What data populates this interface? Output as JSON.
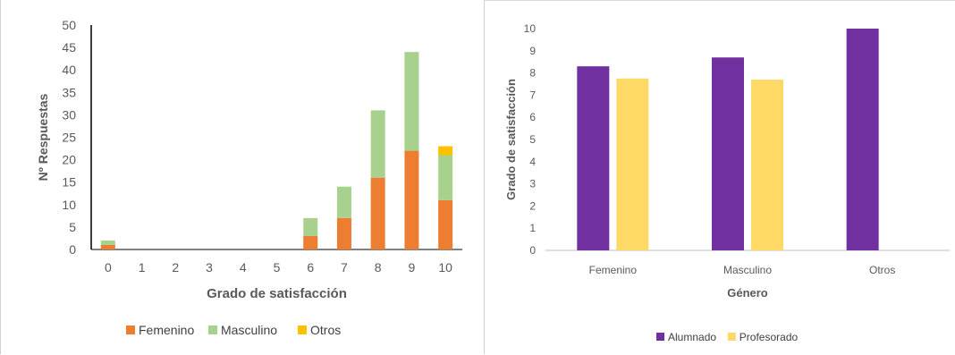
{
  "chart_data": [
    {
      "type": "bar",
      "stacked": true,
      "title": "",
      "xlabel": "Grado de satisfacción",
      "ylabel": "Nº Respuestas",
      "categories": [
        "0",
        "1",
        "2",
        "3",
        "4",
        "5",
        "6",
        "7",
        "8",
        "9",
        "10"
      ],
      "ylim": [
        0,
        50
      ],
      "yticks": [
        "0",
        "5",
        "10",
        "15",
        "20",
        "25",
        "30",
        "35",
        "40",
        "45",
        "50"
      ],
      "grid": false,
      "legend_position": "bottom",
      "series": [
        {
          "name": "Femenino",
          "color": "#ED7D31",
          "values": [
            1,
            0,
            0,
            0,
            0,
            0,
            3,
            7,
            16,
            22,
            11
          ]
        },
        {
          "name": "Masculino",
          "color": "#A9D18E",
          "values": [
            1,
            0,
            0,
            0,
            0,
            0,
            4,
            7,
            15,
            22,
            10
          ]
        },
        {
          "name": "Otros",
          "color": "#FFC000",
          "values": [
            0,
            0,
            0,
            0,
            0,
            0,
            0,
            0,
            0,
            0,
            2
          ]
        }
      ]
    },
    {
      "type": "bar",
      "stacked": false,
      "title": "",
      "xlabel": "Género",
      "ylabel": "Grado de satisfacción",
      "categories": [
        "Femenino",
        "Masculino",
        "Otros"
      ],
      "ylim": [
        0,
        10
      ],
      "yticks": [
        "0",
        "1",
        "2",
        "3",
        "4",
        "5",
        "6",
        "7",
        "8",
        "9",
        "10"
      ],
      "grid": false,
      "legend_position": "bottom",
      "series": [
        {
          "name": "Alumnado",
          "color": "#7030A0",
          "values": [
            8.3,
            8.7,
            10
          ]
        },
        {
          "name": "Profesorado",
          "color": "#FFD966",
          "values": [
            7.75,
            7.7,
            null
          ]
        }
      ]
    }
  ]
}
